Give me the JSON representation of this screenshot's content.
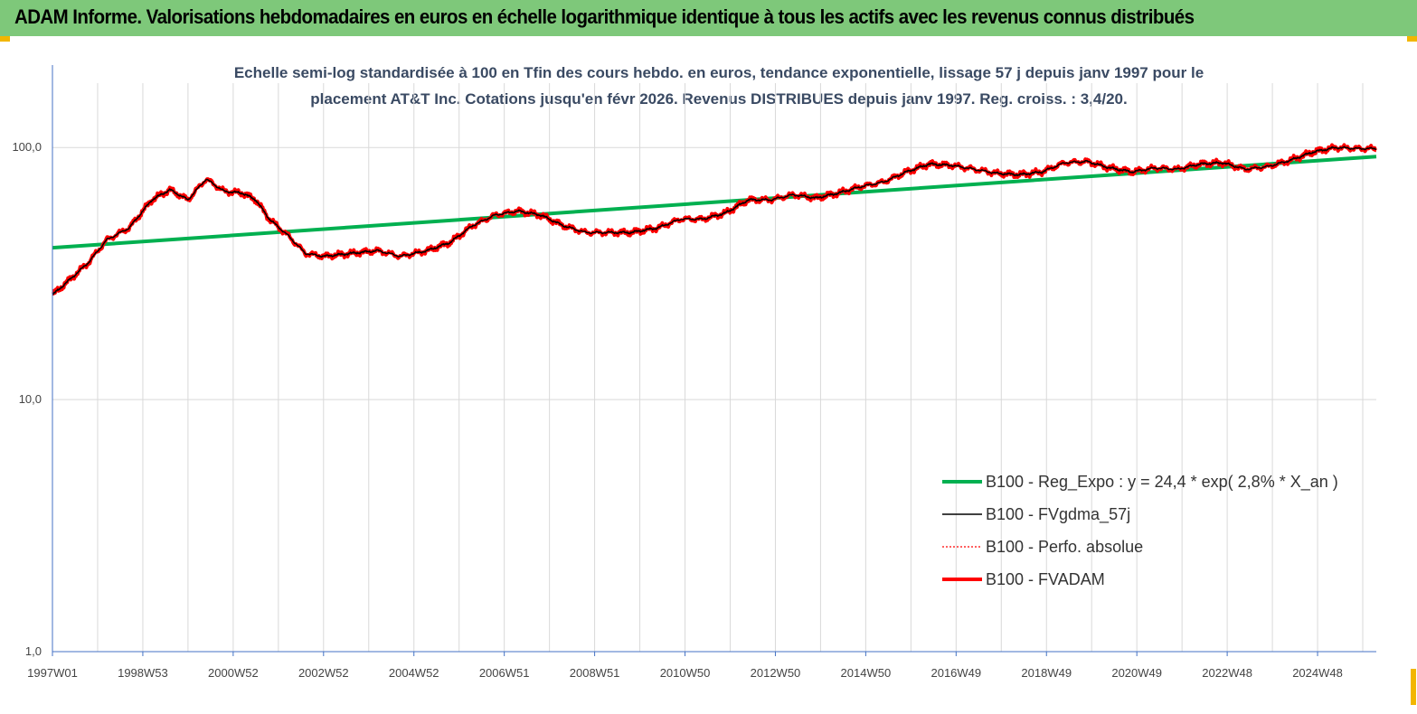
{
  "banner": {
    "title": "ADAM Informe. Valorisations hebdomadaires en euros en échelle logarithmique identique à tous les actifs avec les revenus connus distribués",
    "color": "#7ec87a",
    "accent": "#f2b600"
  },
  "chart_data": {
    "type": "line",
    "title_line1": "Echelle semi-log standardisée à 100 en Tfin des cours hebdo. en euros, tendance exponentielle, lissage 57 j depuis janv 1997 pour le",
    "title_line2": "placement AT&T Inc. Cotations jusqu'en févr 2026. Revenus DISTRIBUES depuis janv 1997. Reg. croiss. : 3,4/20.",
    "yscale": "log",
    "ylim": [
      1,
      180
    ],
    "xlim": [
      1997.0,
      2026.3
    ],
    "y_ticks": [
      {
        "value": 1,
        "label": "1,0"
      },
      {
        "value": 10,
        "label": "10,0"
      },
      {
        "value": 100,
        "label": "100,0"
      }
    ],
    "x_ticks": [
      {
        "value": 1997.0,
        "label": "1997W01"
      },
      {
        "value": 1999.0,
        "label": "1998W53"
      },
      {
        "value": 2001.0,
        "label": "2000W52"
      },
      {
        "value": 2003.0,
        "label": "2002W52"
      },
      {
        "value": 2005.0,
        "label": "2004W52"
      },
      {
        "value": 2007.0,
        "label": "2006W51"
      },
      {
        "value": 2009.0,
        "label": "2008W51"
      },
      {
        "value": 2011.0,
        "label": "2010W50"
      },
      {
        "value": 2013.0,
        "label": "2012W50"
      },
      {
        "value": 2015.0,
        "label": "2014W50"
      },
      {
        "value": 2017.0,
        "label": "2016W49"
      },
      {
        "value": 2019.0,
        "label": "2018W49"
      },
      {
        "value": 2021.0,
        "label": "2020W49"
      },
      {
        "value": 2023.0,
        "label": "2022W48"
      },
      {
        "value": 2025.0,
        "label": "2024W48"
      }
    ],
    "series": [
      {
        "name": "B100 - Reg_Expo : y = 24,4 * exp( 2,8% * X_an )",
        "color": "#00b050",
        "style": "solid-thick",
        "x": [
          1997.0,
          2026.3
        ],
        "values": [
          40.0,
          92.0
        ]
      },
      {
        "name": "B100 - FVgdma_57j",
        "color": "#000000",
        "style": "solid-thin",
        "x": [
          1997.0,
          1997.3,
          1997.8,
          1998.2,
          1998.7,
          1999.2,
          1999.6,
          2000.0,
          2000.4,
          2000.8,
          2001.2,
          2001.5,
          2001.8,
          2002.2,
          2002.6,
          2003.0,
          2003.6,
          2004.2,
          2004.7,
          2005.3,
          2005.8,
          2006.3,
          2006.8,
          2007.3,
          2007.8,
          2008.3,
          2008.8,
          2009.3,
          2009.8,
          2010.4,
          2010.9,
          2011.4,
          2011.9,
          2012.4,
          2012.9,
          2013.4,
          2013.9,
          2014.4,
          2014.9,
          2015.4,
          2015.9,
          2016.4,
          2016.9,
          2017.4,
          2017.9,
          2018.4,
          2018.9,
          2019.4,
          2019.9,
          2020.4,
          2020.9,
          2021.4,
          2021.9,
          2022.4,
          2022.9,
          2023.4,
          2023.9,
          2024.4,
          2024.9,
          2025.4,
          2025.9,
          2026.3
        ],
        "values": [
          26,
          29,
          35,
          43,
          48,
          62,
          68,
          62,
          75,
          67,
          66,
          62,
          52,
          45,
          38,
          37,
          38,
          39,
          37,
          39,
          42,
          49,
          54,
          56,
          54,
          49,
          46,
          46,
          46,
          48,
          52,
          52,
          55,
          62,
          62,
          65,
          63,
          66,
          70,
          73,
          80,
          86,
          85,
          82,
          79,
          78,
          80,
          87,
          88,
          83,
          80,
          83,
          82,
          86,
          87,
          82,
          84,
          89,
          96,
          100,
          99,
          99
        ]
      },
      {
        "name": "B100 - Perfo. absolue",
        "color": "#ff0000",
        "style": "dotted",
        "x": [
          1997.0,
          1997.3,
          1997.8,
          1998.2,
          1998.7,
          1999.2,
          1999.6,
          2000.0,
          2000.4,
          2000.8,
          2001.2,
          2001.5,
          2001.8,
          2002.2,
          2002.6,
          2003.0,
          2003.6,
          2004.2,
          2004.7,
          2005.3,
          2005.8,
          2006.3,
          2006.8,
          2007.3,
          2007.8,
          2008.3,
          2008.8,
          2009.3,
          2009.8,
          2010.4,
          2010.9,
          2011.4,
          2011.9,
          2012.4,
          2012.9,
          2013.4,
          2013.9,
          2014.4,
          2014.9,
          2015.4,
          2015.9,
          2016.4,
          2016.9,
          2017.4,
          2017.9,
          2018.4,
          2018.9,
          2019.4,
          2019.9,
          2020.4,
          2020.9,
          2021.4,
          2021.9,
          2022.4,
          2022.9,
          2023.4,
          2023.9,
          2024.4,
          2024.9,
          2025.4,
          2025.9,
          2026.3
        ],
        "values": [
          26,
          29,
          35,
          43,
          48,
          62,
          68,
          62,
          75,
          67,
          66,
          62,
          52,
          45,
          38,
          37,
          38,
          39,
          37,
          39,
          42,
          49,
          54,
          56,
          54,
          49,
          46,
          46,
          46,
          48,
          52,
          52,
          55,
          62,
          62,
          65,
          63,
          66,
          70,
          73,
          80,
          86,
          85,
          82,
          79,
          78,
          80,
          87,
          88,
          83,
          80,
          83,
          82,
          86,
          87,
          82,
          84,
          89,
          96,
          100,
          99,
          99
        ]
      },
      {
        "name": "B100 - FVADAM",
        "color": "#ff0000",
        "style": "solid-thick",
        "x": [
          1997.0,
          1997.3,
          1997.8,
          1998.2,
          1998.7,
          1999.2,
          1999.6,
          2000.0,
          2000.4,
          2000.8,
          2001.2,
          2001.5,
          2001.8,
          2002.2,
          2002.6,
          2003.0,
          2003.6,
          2004.2,
          2004.7,
          2005.3,
          2005.8,
          2006.3,
          2006.8,
          2007.3,
          2007.8,
          2008.3,
          2008.8,
          2009.3,
          2009.8,
          2010.4,
          2010.9,
          2011.4,
          2011.9,
          2012.4,
          2012.9,
          2013.4,
          2013.9,
          2014.4,
          2014.9,
          2015.4,
          2015.9,
          2016.4,
          2016.9,
          2017.4,
          2017.9,
          2018.4,
          2018.9,
          2019.4,
          2019.9,
          2020.4,
          2020.9,
          2021.4,
          2021.9,
          2022.4,
          2022.9,
          2023.4,
          2023.9,
          2024.4,
          2024.9,
          2025.4,
          2025.9,
          2026.3
        ],
        "values": [
          26,
          29,
          35,
          43,
          48,
          62,
          68,
          62,
          75,
          67,
          66,
          62,
          52,
          45,
          38,
          37,
          38,
          39,
          37,
          39,
          42,
          49,
          54,
          56,
          54,
          49,
          46,
          46,
          46,
          48,
          52,
          52,
          55,
          62,
          62,
          65,
          63,
          66,
          70,
          73,
          80,
          86,
          85,
          82,
          79,
          78,
          80,
          87,
          88,
          83,
          80,
          83,
          82,
          86,
          87,
          82,
          84,
          89,
          96,
          100,
          99,
          99
        ]
      }
    ],
    "legend_position": "bottom-right"
  }
}
